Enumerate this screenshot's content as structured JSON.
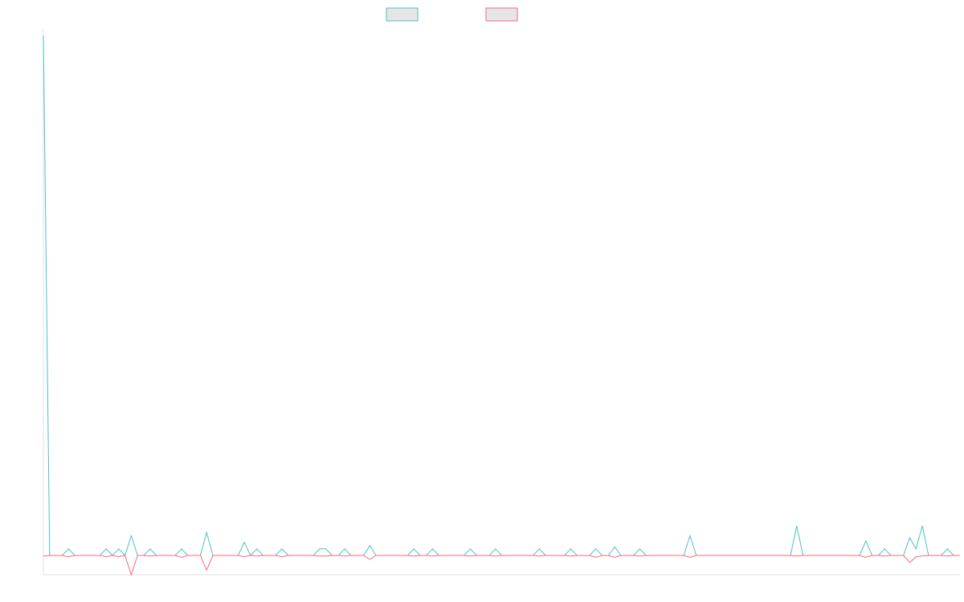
{
  "chart_data": {
    "type": "line",
    "title": "",
    "xlabel": "",
    "ylabel": "",
    "grid": false,
    "legend_position": "top-center",
    "ylim": [
      -3,
      80
    ],
    "series": [
      {
        "color": "#4bc0c0",
        "values": [
          79,
          0,
          0,
          0,
          1,
          0,
          0,
          0,
          0,
          0,
          1,
          0,
          1,
          0,
          3,
          0,
          0,
          1,
          0,
          0,
          0,
          0,
          1,
          0,
          0,
          0,
          3.5,
          0,
          0,
          0,
          0,
          0,
          2,
          0,
          1,
          0,
          0,
          0,
          1,
          0,
          0,
          0,
          0,
          0,
          1,
          1,
          0,
          0,
          1,
          0,
          0,
          0,
          1.5,
          0,
          0,
          0,
          0,
          0,
          0,
          1,
          0,
          0,
          1,
          0,
          0,
          0,
          0,
          0,
          1,
          0,
          0,
          0,
          1,
          0,
          0,
          0,
          0,
          0,
          0,
          1,
          0,
          0,
          0,
          0,
          1,
          0,
          0,
          0,
          1,
          0,
          0,
          1.3,
          0,
          0,
          0,
          1,
          0,
          0,
          0,
          0,
          0,
          0,
          0,
          3,
          0,
          0,
          0,
          0,
          0,
          0,
          0,
          0,
          0,
          0,
          0,
          0,
          0,
          0,
          0,
          0,
          4.5,
          0,
          0,
          0,
          0,
          0,
          0,
          0,
          0,
          0,
          0,
          2.2,
          0,
          0,
          1,
          0,
          0,
          0,
          2.7,
          1,
          4.5,
          0,
          0,
          0,
          1,
          0,
          0
        ]
      },
      {
        "color": "#ff6384",
        "values": [
          -0.1,
          0,
          0,
          0,
          -0.2,
          0,
          0,
          0,
          0,
          0,
          -0.2,
          0,
          -0.2,
          0,
          -3,
          0,
          0,
          -0.1,
          0,
          0,
          0,
          0,
          -0.3,
          0,
          0,
          0,
          -2.3,
          0,
          0,
          0,
          0,
          0,
          -0.2,
          0,
          -0.1,
          0,
          0,
          0,
          -0.2,
          0,
          0,
          0,
          0,
          0,
          -0.1,
          -0.1,
          0,
          0,
          -0.1,
          0,
          0,
          0,
          -0.6,
          0,
          0,
          0,
          0,
          0,
          0,
          -0.1,
          0,
          0,
          -0.1,
          0,
          0,
          0,
          0,
          0,
          -0.1,
          0,
          0,
          0,
          -0.1,
          0,
          0,
          0,
          0,
          0,
          0,
          -0.1,
          0,
          0,
          0,
          0,
          -0.1,
          0,
          0,
          0,
          -0.3,
          0,
          0,
          -0.3,
          0,
          0,
          0,
          -0.1,
          0,
          0,
          0,
          0,
          0,
          0,
          0,
          -0.3,
          0,
          0,
          0,
          0,
          0,
          0,
          0,
          0,
          0,
          0,
          0,
          0,
          0,
          0,
          0,
          0,
          -0.1,
          0,
          0,
          0,
          0,
          0,
          0,
          0,
          0,
          0,
          0,
          -0.3,
          0,
          0,
          -0.1,
          0,
          0,
          0,
          -1.1,
          -0.2,
          -0.1,
          0,
          0,
          0,
          -0.1,
          0,
          0
        ]
      }
    ]
  }
}
